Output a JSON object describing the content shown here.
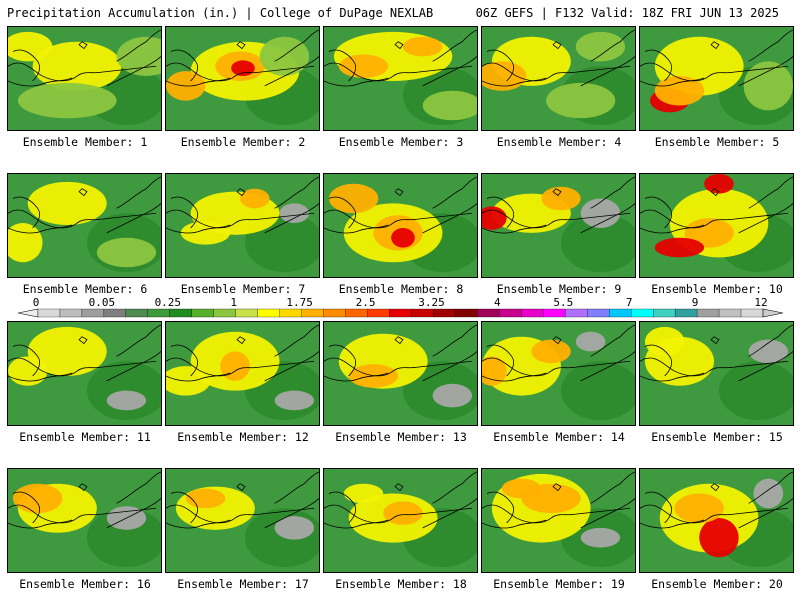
{
  "header": {
    "left": "Precipitation Accumulation (in.) | College of DuPage NEXLAB",
    "right": "06Z GEFS | F132 Valid: 18Z FRI JUN 13 2025"
  },
  "panels": [
    {
      "label": "Ensemble Member: 1"
    },
    {
      "label": "Ensemble Member: 2"
    },
    {
      "label": "Ensemble Member: 3"
    },
    {
      "label": "Ensemble Member: 4"
    },
    {
      "label": "Ensemble Member: 5"
    },
    {
      "label": "Ensemble Member: 6"
    },
    {
      "label": "Ensemble Member: 7"
    },
    {
      "label": "Ensemble Member: 8"
    },
    {
      "label": "Ensemble Member: 9"
    },
    {
      "label": "Ensemble Member: 10"
    },
    {
      "label": "Ensemble Member: 11"
    },
    {
      "label": "Ensemble Member: 12"
    },
    {
      "label": "Ensemble Member: 13"
    },
    {
      "label": "Ensemble Member: 14"
    },
    {
      "label": "Ensemble Member: 15"
    },
    {
      "label": "Ensemble Member: 16"
    },
    {
      "label": "Ensemble Member: 17"
    },
    {
      "label": "Ensemble Member: 18"
    },
    {
      "label": "Ensemble Member: 19"
    },
    {
      "label": "Ensemble Member: 20"
    }
  ],
  "colorbar": {
    "tick_labels": [
      "0",
      "0.05",
      "0.25",
      "1",
      "1.75",
      "2.5",
      "3.25",
      "4",
      "5.5",
      "7",
      "9",
      "12"
    ],
    "colors": [
      "#d9d9d9",
      "#bdbdbd",
      "#9e9e9e",
      "#7f7f7f",
      "#4f8a4f",
      "#3c9a3c",
      "#1f8c1f",
      "#56b02a",
      "#8cc63f",
      "#c8e04a",
      "#ffff00",
      "#ffd700",
      "#ffb000",
      "#ff8c00",
      "#ff6400",
      "#ff3c00",
      "#e60000",
      "#c80000",
      "#a00000",
      "#800000",
      "#a0005a",
      "#c8008c",
      "#e600c8",
      "#ff00ff",
      "#b070ff",
      "#7f7fff",
      "#00c8ff",
      "#00ffff",
      "#40d0c0",
      "#30a0a0",
      "#a0a0a0",
      "#c0c0c0",
      "#d8d8d8"
    ]
  },
  "fill_colors": {
    "base_green": "#3f9a3f",
    "dark_green": "#2e8b2e",
    "light_green": "#8cc63f",
    "yellow": "#f2f200",
    "orange": "#ffb000",
    "red": "#e60000",
    "grey": "#a8a8a8"
  }
}
